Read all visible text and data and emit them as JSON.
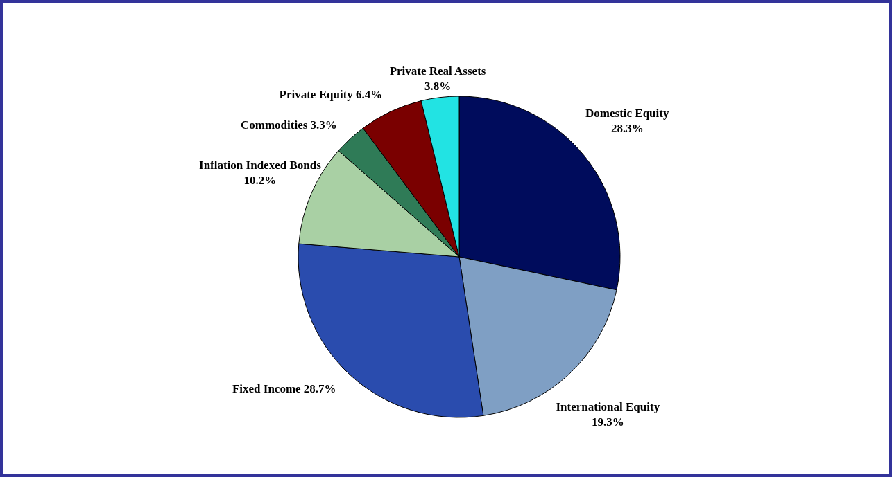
{
  "chart_data": {
    "type": "pie",
    "categories": [
      "Domestic Equity",
      "International Equity",
      "Fixed Income",
      "Inflation Indexed Bonds",
      "Commodities",
      "Private Equity",
      "Private Real Assets"
    ],
    "values": [
      28.3,
      19.3,
      28.7,
      10.2,
      3.3,
      6.4,
      3.8
    ],
    "colors": [
      "#000c5c",
      "#7f9fc4",
      "#2a4cae",
      "#a9d0a4",
      "#2f7b57",
      "#7a0000",
      "#22e3e3"
    ],
    "value_labels": [
      "28.3%",
      "19.3%",
      "28.7%",
      "10.2%",
      "3.3%",
      "6.4%",
      "3.8%"
    ]
  }
}
